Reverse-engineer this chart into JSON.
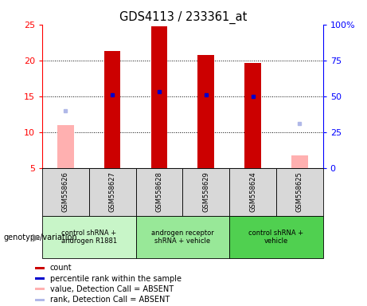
{
  "title": "GDS4113 / 233361_at",
  "samples": [
    "GSM558626",
    "GSM558627",
    "GSM558628",
    "GSM558629",
    "GSM558624",
    "GSM558625"
  ],
  "count_values": [
    null,
    21.3,
    24.8,
    20.8,
    19.7,
    null
  ],
  "count_absent_values": [
    11.0,
    null,
    null,
    null,
    null,
    6.8
  ],
  "percentile_rank": [
    null,
    15.2,
    15.7,
    15.2,
    15.0,
    null
  ],
  "rank_absent": [
    13.0,
    null,
    null,
    null,
    null,
    11.2
  ],
  "ylim_left": [
    5,
    25
  ],
  "ylim_right": [
    0,
    100
  ],
  "yticks_left": [
    5,
    10,
    15,
    20,
    25
  ],
  "yticks_right": [
    0,
    25,
    50,
    75,
    100
  ],
  "ytick_labels_right": [
    "0",
    "25",
    "50",
    "75",
    "100%"
  ],
  "groups": [
    {
      "label": "control shRNA +\nandrogen R1881",
      "color": "#c8f5c8",
      "samples": [
        0,
        1
      ]
    },
    {
      "label": "androgen receptor\nshRNA + vehicle",
      "color": "#98e898",
      "samples": [
        2,
        3
      ]
    },
    {
      "label": "control shRNA +\nvehicle",
      "color": "#50d050",
      "samples": [
        4,
        5
      ]
    }
  ],
  "bar_width": 0.35,
  "count_color": "#cc0000",
  "count_absent_color": "#ffb0b0",
  "rank_color": "#0000cc",
  "rank_absent_color": "#b0b8e8",
  "legend_items": [
    {
      "color": "#cc0000",
      "label": "count"
    },
    {
      "color": "#0000cc",
      "label": "percentile rank within the sample"
    },
    {
      "color": "#ffb0b0",
      "label": "value, Detection Call = ABSENT"
    },
    {
      "color": "#b0b8e8",
      "label": "rank, Detection Call = ABSENT"
    }
  ],
  "genotype_label": "genotype/variation",
  "grid_lines": [
    10,
    15,
    20
  ],
  "sample_box_color": "#d8d8d8"
}
